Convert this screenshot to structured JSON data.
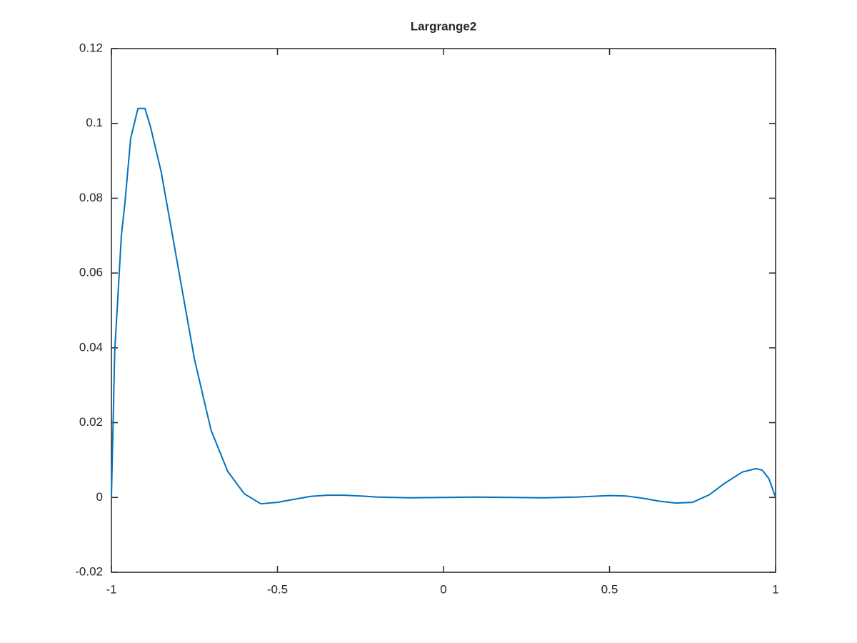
{
  "chart_data": {
    "type": "line",
    "title": "Largrange2",
    "x": [
      -1,
      -0.99,
      -0.97,
      -0.959,
      -0.942,
      -0.92,
      -0.899,
      -0.882,
      -0.85,
      -0.8,
      -0.75,
      -0.7,
      -0.65,
      -0.6,
      -0.55,
      -0.5,
      -0.45,
      -0.4,
      -0.35,
      -0.3,
      -0.25,
      -0.2,
      -0.1,
      0,
      0.1,
      0.2,
      0.3,
      0.4,
      0.5,
      0.55,
      0.6,
      0.65,
      0.7,
      0.75,
      0.8,
      0.85,
      0.9,
      0.94,
      0.96,
      0.98,
      1
    ],
    "series": [
      {
        "color": "#0072bd",
        "values": [
          0,
          0.039,
          0.07,
          0.079,
          0.096,
          0.104,
          0.104,
          0.099,
          0.087,
          0.062,
          0.037,
          0.018,
          0.007,
          0.001,
          -0.0017,
          -0.0013,
          -0.0005,
          0.0003,
          0.0006,
          0.0006,
          0.0004,
          0.0001,
          -0.0001,
          0,
          0.0001,
          0,
          -0.0001,
          0.0001,
          0.0005,
          0.0004,
          -0.0002,
          -0.001,
          -0.0015,
          -0.0013,
          0.0007,
          0.004,
          0.0068,
          0.0077,
          0.0073,
          0.005,
          0
        ]
      }
    ],
    "xlim": [
      -1,
      1
    ],
    "xticks": [
      -1,
      -0.5,
      0,
      0.5,
      1
    ],
    "ylim": [
      -0.02,
      0.12
    ],
    "yticks": [
      -0.02,
      0,
      0.02,
      0.04,
      0.06,
      0.08,
      0.1,
      0.12
    ]
  }
}
